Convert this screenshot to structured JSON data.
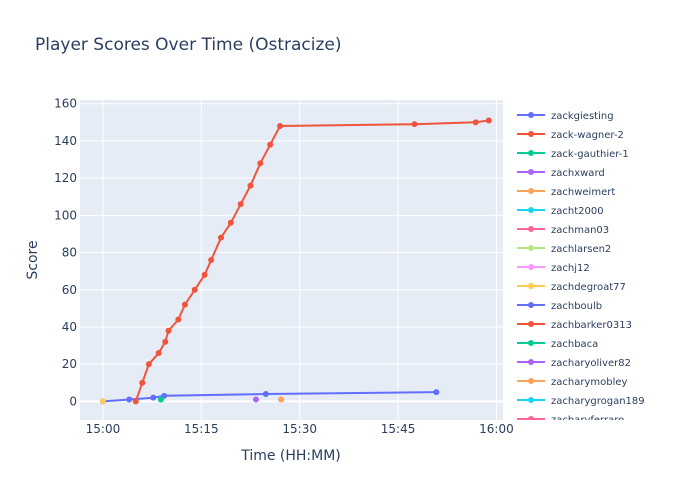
{
  "chart_data": {
    "type": "line",
    "title": "Player Scores Over Time (Ostracize)",
    "xlabel": "Time (HH:MM)",
    "ylabel": "Score",
    "x_ticks": [
      "15:00",
      "15:15",
      "15:30",
      "15:45",
      "16:00"
    ],
    "y_ticks": [
      0,
      20,
      40,
      60,
      80,
      100,
      120,
      140,
      160
    ],
    "xlim": [
      "14:56:30",
      "16:01:00"
    ],
    "ylim": [
      -10,
      162
    ],
    "grid": true,
    "legend_position": "right",
    "series": [
      {
        "name": "zackgiesting",
        "color": "#636efa",
        "points": [
          [
            "15:00:00",
            0
          ],
          [
            "15:04:00",
            1
          ],
          [
            "15:07:40",
            2
          ],
          [
            "15:09:20",
            3
          ],
          [
            "15:24:50",
            4
          ],
          [
            "15:50:50",
            5
          ]
        ]
      },
      {
        "name": "zack-wagner-2",
        "color": "#EF553B",
        "points": [
          [
            "15:05:00",
            0
          ],
          [
            "15:06:00",
            10
          ],
          [
            "15:07:00",
            20
          ],
          [
            "15:08:30",
            26
          ],
          [
            "15:09:30",
            32
          ],
          [
            "15:10:00",
            38
          ],
          [
            "15:11:30",
            44
          ],
          [
            "15:12:30",
            52
          ],
          [
            "15:14:00",
            60
          ],
          [
            "15:15:30",
            68
          ],
          [
            "15:16:30",
            76
          ],
          [
            "15:18:00",
            88
          ],
          [
            "15:19:30",
            96
          ],
          [
            "15:21:00",
            106
          ],
          [
            "15:22:30",
            116
          ],
          [
            "15:24:00",
            128
          ],
          [
            "15:25:30",
            138
          ],
          [
            "15:27:00",
            148
          ],
          [
            "15:47:30",
            149
          ],
          [
            "15:56:50",
            150
          ],
          [
            "15:58:50",
            151
          ]
        ]
      },
      {
        "name": "zack-gauthier-1",
        "color": "#00cc96",
        "points": [
          [
            "15:08:50",
            1
          ]
        ]
      },
      {
        "name": "zachxward",
        "color": "#ab63fa",
        "points": [
          [
            "15:23:20",
            1
          ]
        ]
      },
      {
        "name": "zachweimert",
        "color": "#FFA15A",
        "points": [
          [
            "15:27:10",
            1
          ]
        ]
      },
      {
        "name": "zacht2000",
        "color": "#19d3f3",
        "points": []
      },
      {
        "name": "zachman03",
        "color": "#FF6692",
        "points": []
      },
      {
        "name": "zachlarsen2",
        "color": "#B6E880",
        "points": []
      },
      {
        "name": "zachj12",
        "color": "#FF97FF",
        "points": []
      },
      {
        "name": "zachdegroat77",
        "color": "#FECB52",
        "points": [
          [
            "15:00:00",
            0
          ]
        ]
      },
      {
        "name": "zachboulb",
        "color": "#636efa",
        "points": []
      },
      {
        "name": "zachbarker0313",
        "color": "#EF553B",
        "points": []
      },
      {
        "name": "zachbaca",
        "color": "#00cc96",
        "points": []
      },
      {
        "name": "zacharyoliver82",
        "color": "#ab63fa",
        "points": []
      },
      {
        "name": "zacharymobley",
        "color": "#FFA15A",
        "points": []
      },
      {
        "name": "zacharygrogan189",
        "color": "#19d3f3",
        "points": []
      },
      {
        "name": "zacharyferraro",
        "color": "#FF6692",
        "points": []
      }
    ]
  }
}
